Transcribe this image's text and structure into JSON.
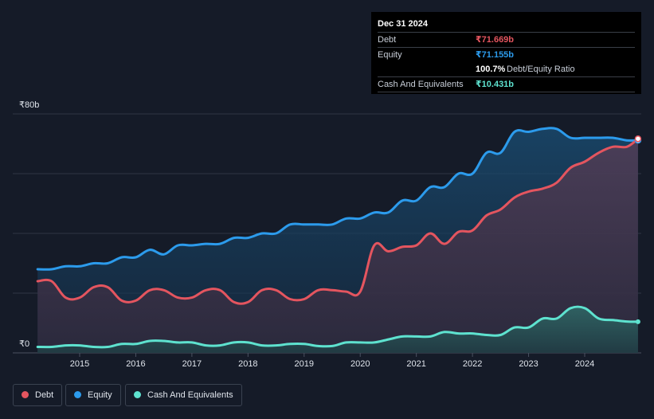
{
  "tooltip": {
    "date": "Dec 31 2024",
    "rows": [
      {
        "label": "Debt",
        "value": "₹71.669b",
        "color": "#e4555f"
      },
      {
        "label": "Equity",
        "value": "₹71.155b",
        "color": "#2c9bec"
      }
    ],
    "ratio_value": "100.7%",
    "ratio_label": "Debt/Equity Ratio",
    "cash_label": "Cash And Equivalents",
    "cash_value": "₹10.431b",
    "cash_color": "#5ee2cf"
  },
  "y_axis": {
    "top_label": "₹80b",
    "bottom_label": "₹0"
  },
  "legend": [
    {
      "label": "Debt",
      "color": "#e4555f"
    },
    {
      "label": "Equity",
      "color": "#2c9bec"
    },
    {
      "label": "Cash And Equivalents",
      "color": "#5ee2cf"
    }
  ],
  "chart_data": {
    "type": "area",
    "x_ticks": [
      "2015",
      "2016",
      "2017",
      "2018",
      "2019",
      "2020",
      "2021",
      "2022",
      "2023",
      "2024"
    ],
    "ylim": [
      0,
      80
    ],
    "y_unit": "₹ billions",
    "grid": true,
    "series": [
      {
        "name": "Debt",
        "color": "#e4555f",
        "points": [
          [
            2014.25,
            24
          ],
          [
            2014.5,
            24
          ],
          [
            2014.75,
            18.5
          ],
          [
            2015.0,
            18.5
          ],
          [
            2015.25,
            22
          ],
          [
            2015.5,
            22
          ],
          [
            2015.75,
            17.5
          ],
          [
            2016.0,
            17.5
          ],
          [
            2016.25,
            21
          ],
          [
            2016.5,
            21
          ],
          [
            2016.75,
            18.5
          ],
          [
            2017.0,
            18.5
          ],
          [
            2017.25,
            21
          ],
          [
            2017.5,
            21
          ],
          [
            2017.75,
            17
          ],
          [
            2018.0,
            17
          ],
          [
            2018.25,
            21
          ],
          [
            2018.5,
            21
          ],
          [
            2018.75,
            18
          ],
          [
            2019.0,
            18
          ],
          [
            2019.25,
            21
          ],
          [
            2019.5,
            21
          ],
          [
            2019.75,
            20.5
          ],
          [
            2020.0,
            20.5
          ],
          [
            2020.25,
            36
          ],
          [
            2020.5,
            34
          ],
          [
            2020.75,
            35.5
          ],
          [
            2021.0,
            36
          ],
          [
            2021.25,
            40
          ],
          [
            2021.5,
            36.5
          ],
          [
            2021.75,
            40.5
          ],
          [
            2022.0,
            41
          ],
          [
            2022.25,
            46
          ],
          [
            2022.5,
            48
          ],
          [
            2022.75,
            52
          ],
          [
            2023.0,
            54
          ],
          [
            2023.25,
            55
          ],
          [
            2023.5,
            57
          ],
          [
            2023.75,
            62
          ],
          [
            2024.0,
            64
          ],
          [
            2024.25,
            67
          ],
          [
            2024.5,
            69
          ],
          [
            2024.75,
            69
          ],
          [
            2024.95,
            71.669
          ]
        ]
      },
      {
        "name": "Equity",
        "color": "#2c9bec",
        "points": [
          [
            2014.25,
            28
          ],
          [
            2014.5,
            28
          ],
          [
            2014.75,
            29
          ],
          [
            2015.0,
            29
          ],
          [
            2015.25,
            30
          ],
          [
            2015.5,
            30
          ],
          [
            2015.75,
            32
          ],
          [
            2016.0,
            32
          ],
          [
            2016.25,
            34.5
          ],
          [
            2016.5,
            33
          ],
          [
            2016.75,
            36
          ],
          [
            2017.0,
            36
          ],
          [
            2017.25,
            36.5
          ],
          [
            2017.5,
            36.5
          ],
          [
            2017.75,
            38.5
          ],
          [
            2018.0,
            38.5
          ],
          [
            2018.25,
            40
          ],
          [
            2018.5,
            40
          ],
          [
            2018.75,
            43
          ],
          [
            2019.0,
            43
          ],
          [
            2019.25,
            43
          ],
          [
            2019.5,
            43
          ],
          [
            2019.75,
            45
          ],
          [
            2020.0,
            45
          ],
          [
            2020.25,
            47
          ],
          [
            2020.5,
            47
          ],
          [
            2020.75,
            51
          ],
          [
            2021.0,
            51
          ],
          [
            2021.25,
            55.5
          ],
          [
            2021.5,
            55.5
          ],
          [
            2021.75,
            60
          ],
          [
            2022.0,
            60
          ],
          [
            2022.25,
            67
          ],
          [
            2022.5,
            67
          ],
          [
            2022.75,
            74
          ],
          [
            2023.0,
            74
          ],
          [
            2023.25,
            75
          ],
          [
            2023.5,
            75
          ],
          [
            2023.75,
            72
          ],
          [
            2024.0,
            72
          ],
          [
            2024.25,
            72
          ],
          [
            2024.5,
            72
          ],
          [
            2024.75,
            71.155
          ],
          [
            2024.95,
            71.155
          ]
        ]
      },
      {
        "name": "Cash And Equivalents",
        "color": "#5ee2cf",
        "points": [
          [
            2014.25,
            2
          ],
          [
            2014.5,
            2
          ],
          [
            2014.75,
            2.5
          ],
          [
            2015.0,
            2.5
          ],
          [
            2015.25,
            2
          ],
          [
            2015.5,
            2
          ],
          [
            2015.75,
            3
          ],
          [
            2016.0,
            3
          ],
          [
            2016.25,
            4
          ],
          [
            2016.5,
            4
          ],
          [
            2016.75,
            3.5
          ],
          [
            2017.0,
            3.5
          ],
          [
            2017.25,
            2.5
          ],
          [
            2017.5,
            2.5
          ],
          [
            2017.75,
            3.5
          ],
          [
            2018.0,
            3.5
          ],
          [
            2018.25,
            2.5
          ],
          [
            2018.5,
            2.5
          ],
          [
            2018.75,
            3
          ],
          [
            2019.0,
            3
          ],
          [
            2019.25,
            2.3
          ],
          [
            2019.5,
            2.3
          ],
          [
            2019.75,
            3.5
          ],
          [
            2020.0,
            3.5
          ],
          [
            2020.25,
            3.5
          ],
          [
            2020.5,
            4.5
          ],
          [
            2020.75,
            5.5
          ],
          [
            2021.0,
            5.5
          ],
          [
            2021.25,
            5.5
          ],
          [
            2021.5,
            7
          ],
          [
            2021.75,
            6.5
          ],
          [
            2022.0,
            6.5
          ],
          [
            2022.25,
            6
          ],
          [
            2022.5,
            6
          ],
          [
            2022.75,
            8.5
          ],
          [
            2023.0,
            8.5
          ],
          [
            2023.25,
            11.5
          ],
          [
            2023.5,
            11.5
          ],
          [
            2023.75,
            15
          ],
          [
            2024.0,
            15
          ],
          [
            2024.25,
            11.5
          ],
          [
            2024.5,
            11
          ],
          [
            2024.75,
            10.5
          ],
          [
            2024.95,
            10.431
          ]
        ]
      }
    ]
  }
}
